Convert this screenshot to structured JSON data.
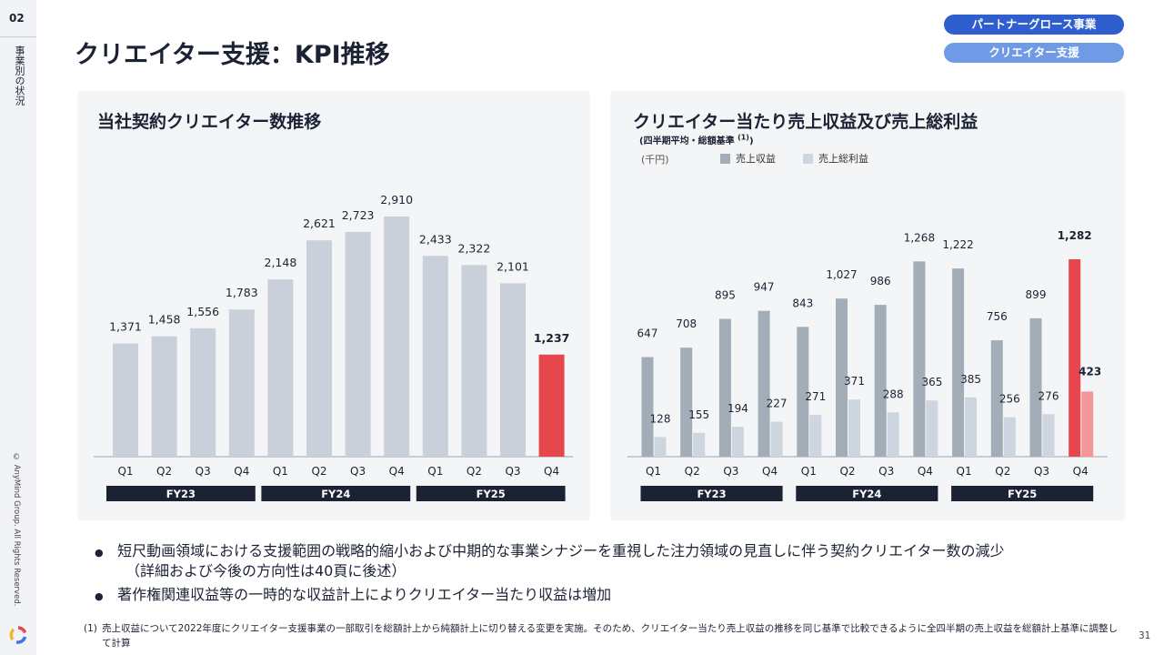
{
  "slide": {
    "number": "02",
    "section_label": "事業別の状況",
    "copyright": "© AnyMind Group. All Rights Reserved.",
    "page_number": "31",
    "title": "クリエイター支援：KPI推移",
    "tag_primary": "パートナーグロース事業",
    "tag_secondary": "クリエイター支援"
  },
  "left_panel": {
    "title": "当社契約クリエイター数推移"
  },
  "right_panel": {
    "title": "クリエイター当たり売上収益及び売上総利益",
    "subtitle": "(四半期平均・総額基準",
    "subtitle_note": "(1)",
    "subtitle_close": ")",
    "unit": "(千円)"
  },
  "colors": {
    "bar_gray": "#c9d0d9",
    "bar_dark": "#a3adb8",
    "bar_light": "#cdd5de",
    "highlight": "#e5474d",
    "highlight_light": "#f4959a",
    "fy_band": "#1b2233"
  },
  "chart_data": [
    {
      "type": "bar",
      "title": "当社契約クリエイター数推移",
      "categories": [
        "Q1",
        "Q2",
        "Q3",
        "Q4",
        "Q1",
        "Q2",
        "Q3",
        "Q4",
        "Q1",
        "Q2",
        "Q3",
        "Q4"
      ],
      "groups": [
        "FY23",
        "FY24",
        "FY25"
      ],
      "values": [
        1371,
        1458,
        1556,
        1783,
        2148,
        2621,
        2723,
        2910,
        2433,
        2322,
        2101,
        1237
      ],
      "labels": [
        "1,371",
        "1,458",
        "1,556",
        "1,783",
        "2,148",
        "2,621",
        "2,723",
        "2,910",
        "2,433",
        "2,322",
        "2,101",
        "1,237"
      ],
      "highlight_index": 11,
      "ylim": [
        0,
        3300
      ]
    },
    {
      "type": "bar",
      "title": "クリエイター当たり売上収益及び売上総利益",
      "categories": [
        "Q1",
        "Q2",
        "Q3",
        "Q4",
        "Q1",
        "Q2",
        "Q3",
        "Q4",
        "Q1",
        "Q2",
        "Q3",
        "Q4"
      ],
      "groups": [
        "FY23",
        "FY24",
        "FY25"
      ],
      "series": [
        {
          "name": "売上収益",
          "values": [
            647,
            708,
            895,
            947,
            843,
            1027,
            986,
            1268,
            1222,
            756,
            899,
            1282
          ],
          "labels": [
            "647",
            "708",
            "895",
            "947",
            "843",
            "1,027",
            "986",
            "1,268",
            "1,222",
            "756",
            "899",
            "1,282"
          ]
        },
        {
          "name": "売上総利益",
          "values": [
            128,
            155,
            194,
            227,
            271,
            371,
            288,
            365,
            385,
            256,
            276,
            423
          ],
          "labels": [
            "128",
            "155",
            "194",
            "227",
            "271",
            "371",
            "288",
            "365",
            "385",
            "256",
            "276",
            "423"
          ]
        }
      ],
      "highlight_index": 11,
      "ylim": [
        0,
        1320
      ]
    }
  ],
  "bullets": [
    "短尺動画領域における支援範囲の戦略的縮小および中期的な事業シナジーを重視した注力領域の見直しに伴う契約クリエイター数の減少",
    "（詳細および今後の方向性は40頁に後述）",
    "著作権関連収益等の一時的な収益計上によりクリエイター当たり収益は増加"
  ],
  "bullet_symbol": "●",
  "footnote": {
    "mark": "(1)",
    "text": "売上収益について2022年度にクリエイター支援事業の一部取引を総額計上から純額計上に切り替える変更を実施。そのため、クリエイター当たり売上収益の推移を同じ基準で比較できるように全四半期の売上収益を総額計上基準に調整して計算"
  }
}
